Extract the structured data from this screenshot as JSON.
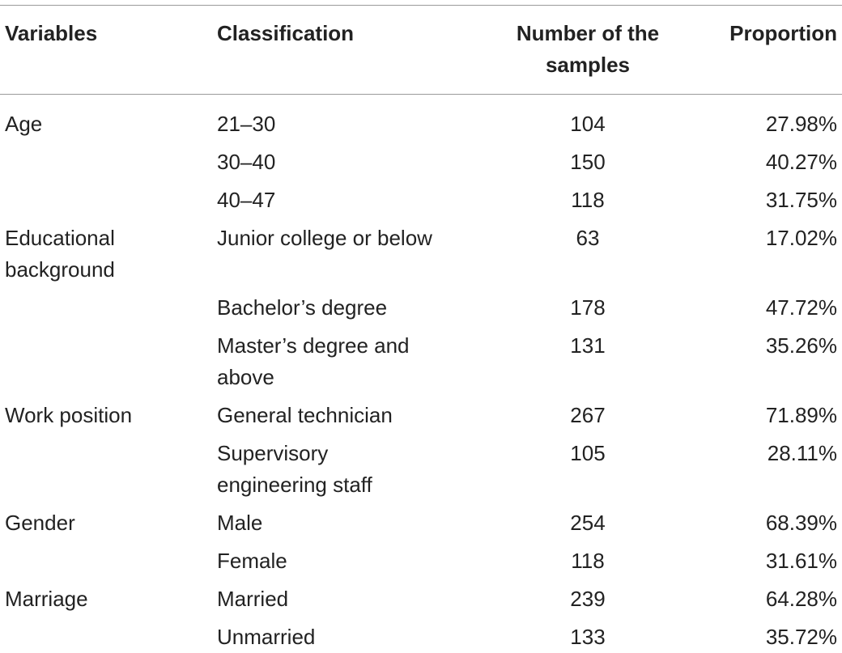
{
  "table": {
    "headers": {
      "variables": "Variables",
      "classification": "Classification",
      "number_line1": "Number of the",
      "number_line2": "samples",
      "proportion": "Proportion"
    },
    "groups": [
      {
        "variable": [
          "Age"
        ],
        "rows": [
          {
            "classification": [
              "21–30"
            ],
            "number": "104",
            "proportion": "27.98%"
          },
          {
            "classification": [
              "30–40"
            ],
            "number": "150",
            "proportion": "40.27%"
          },
          {
            "classification": [
              "40–47"
            ],
            "number": "118",
            "proportion": "31.75%"
          }
        ]
      },
      {
        "variable": [
          "Educational",
          "background"
        ],
        "rows": [
          {
            "classification": [
              "Junior college or below"
            ],
            "number": "63",
            "proportion": "17.02%"
          },
          {
            "classification": [
              "Bachelor’s degree"
            ],
            "number": "178",
            "proportion": "47.72%"
          },
          {
            "classification": [
              "Master’s degree and",
              "above"
            ],
            "number": "131",
            "proportion": "35.26%"
          }
        ]
      },
      {
        "variable": [
          "Work position"
        ],
        "rows": [
          {
            "classification": [
              "General technician"
            ],
            "number": "267",
            "proportion": "71.89%"
          },
          {
            "classification": [
              "Supervisory",
              "engineering staff"
            ],
            "number": "105",
            "proportion": "28.11%"
          }
        ]
      },
      {
        "variable": [
          "Gender"
        ],
        "rows": [
          {
            "classification": [
              "Male"
            ],
            "number": "254",
            "proportion": "68.39%"
          },
          {
            "classification": [
              "Female"
            ],
            "number": "118",
            "proportion": "31.61%"
          }
        ]
      },
      {
        "variable": [
          "Marriage"
        ],
        "rows": [
          {
            "classification": [
              "Married"
            ],
            "number": "239",
            "proportion": "64.28%"
          },
          {
            "classification": [
              "Unmarried"
            ],
            "number": "133",
            "proportion": "35.72%"
          }
        ]
      }
    ]
  }
}
